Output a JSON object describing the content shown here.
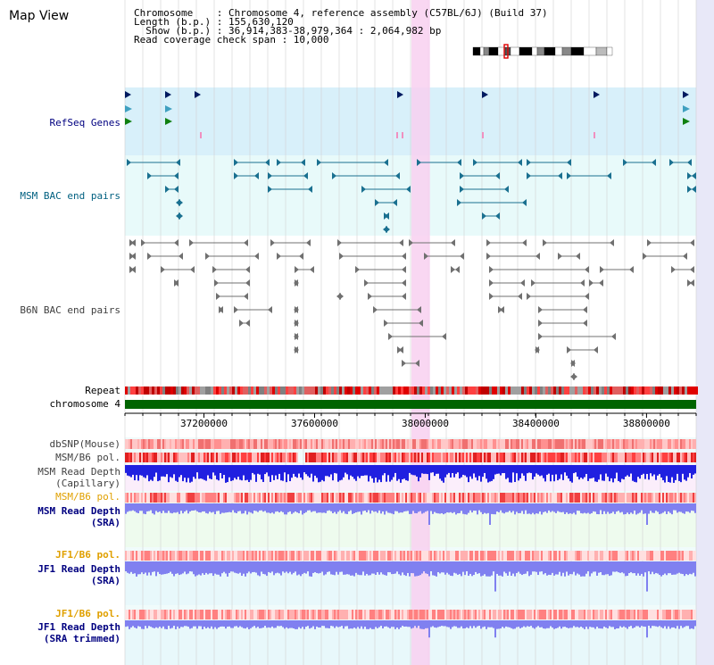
{
  "map": {
    "title": "Map View",
    "info_lines": [
      "Chromosome    : Chromosome 4, reference assembly (C57BL/6J) (Build 37)",
      "Length (b.p.) : 155,630,120",
      "  Show (b.p.) : 36,914,383-38,979,364 : 2,064,982 bp",
      "Read coverage check span : 10,000"
    ]
  },
  "tracks": {
    "refseq_genes": "RefSeq Genes",
    "msm_bac": "MSM BAC end pairs",
    "b6n_bac": "B6N BAC end pairs",
    "repeat": "Repeat",
    "chromosome": "chromosome 4",
    "dbsnp": "dbSNP(Mouse)",
    "msm_b6_pol_1": "MSM/B6 pol.",
    "msm_read_depth_cap_1": "MSM Read Depth",
    "msm_read_depth_cap_2": "(Capillary)",
    "msm_b6_pol_2": "MSM/B6 pol.",
    "msm_read_depth_sra_1": "MSM Read Depth",
    "msm_read_depth_sra_2": "(SRA)",
    "jf1_b6_pol_1": "JF1/B6 pol.",
    "jf1_read_depth_1": "JF1 Read Depth",
    "jf1_read_depth_2": "(SRA)",
    "jf1_b6_pol_2": "JF1/B6 pol.",
    "jf1_read_depth_trim_1": "JF1 Read Depth",
    "jf1_read_depth_trim_2": "(SRA trimmed)"
  },
  "axis": {
    "start": 36914383,
    "end": 38979364,
    "ticks": [
      "37200000",
      "37600000",
      "38000000",
      "38400000",
      "38800000"
    ],
    "highlight_start": 37950000,
    "highlight_end": 38017000
  },
  "colors": {
    "label_blue": "#000080",
    "label_teal": "#006080",
    "label_gray": "#404040",
    "label_orange": "#e0a000",
    "refseq_bg": "#d8f0fa",
    "bac_bg": "#e8fafa",
    "b6n_bg": "#ffffff",
    "depth_blue": "#2020e0",
    "depth_light": "#8080f0",
    "chrom_green": "#006400",
    "highlight": "#f8d0f0",
    "grid": "#d0d0d0"
  }
}
